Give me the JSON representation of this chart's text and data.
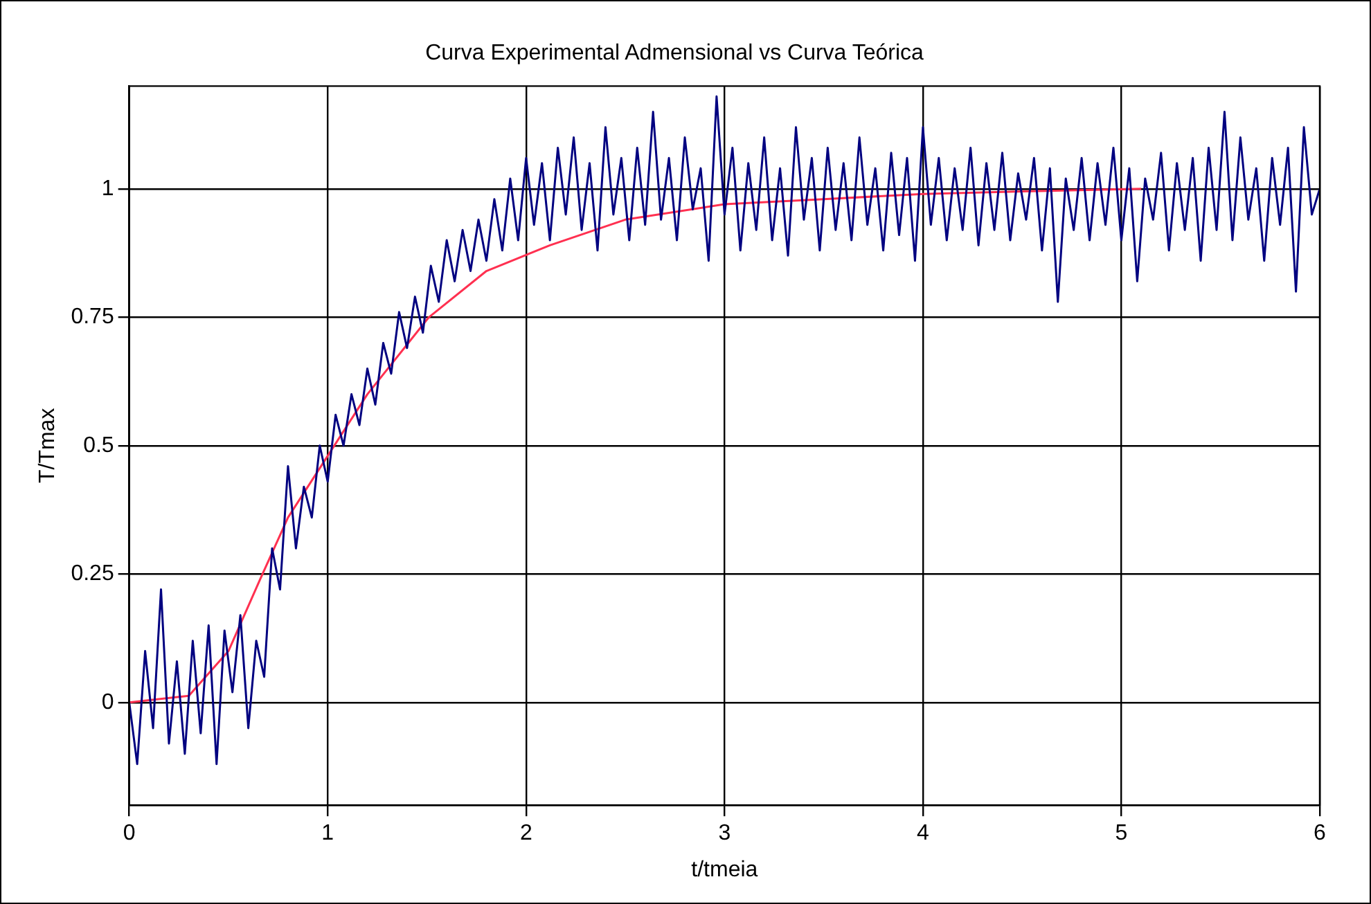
{
  "chart_data": {
    "type": "line",
    "title": "Curva Experimental Admensional vs Curva Teórica",
    "xlabel": "t/tmeia",
    "ylabel": "T/Tmax",
    "xlim": [
      0,
      6
    ],
    "xticks": [
      0,
      1,
      2,
      3,
      4,
      5,
      6
    ],
    "ylim": [
      -0.2,
      1.2
    ],
    "yticks": [
      0,
      0.25,
      0.5,
      0.75,
      1
    ],
    "grid": true,
    "legend": false,
    "marker": "none",
    "line_style": "solid",
    "series": [
      {
        "color": "#000080",
        "x": [
          0,
          0.04,
          0.08,
          0.12,
          0.16,
          0.2,
          0.24,
          0.28,
          0.32,
          0.36,
          0.4,
          0.44,
          0.48,
          0.52,
          0.56,
          0.6,
          0.64,
          0.68,
          0.72,
          0.76,
          0.8,
          0.84,
          0.88,
          0.92,
          0.96,
          1.0,
          1.04,
          1.08,
          1.12,
          1.16,
          1.2,
          1.24,
          1.28,
          1.32,
          1.36,
          1.4,
          1.44,
          1.48,
          1.52,
          1.56,
          1.6,
          1.64,
          1.68,
          1.72,
          1.76,
          1.8,
          1.84,
          1.88,
          1.92,
          1.96,
          2.0,
          2.04,
          2.08,
          2.12,
          2.16,
          2.2,
          2.24,
          2.28,
          2.32,
          2.36,
          2.4,
          2.44,
          2.48,
          2.52,
          2.56,
          2.6,
          2.64,
          2.68,
          2.72,
          2.76,
          2.8,
          2.84,
          2.88,
          2.92,
          2.96,
          3.0,
          3.04,
          3.08,
          3.12,
          3.16,
          3.2,
          3.24,
          3.28,
          3.32,
          3.36,
          3.4,
          3.44,
          3.48,
          3.52,
          3.56,
          3.6,
          3.64,
          3.68,
          3.72,
          3.76,
          3.8,
          3.84,
          3.88,
          3.92,
          3.96,
          4.0,
          4.04,
          4.08,
          4.12,
          4.16,
          4.2,
          4.24,
          4.28,
          4.32,
          4.36,
          4.4,
          4.44,
          4.48,
          4.52,
          4.56,
          4.6,
          4.64,
          4.68,
          4.72,
          4.76,
          4.8,
          4.84,
          4.88,
          4.92,
          4.96,
          5.0,
          5.04,
          5.08,
          5.12,
          5.16,
          5.2,
          5.24,
          5.28,
          5.32,
          5.36,
          5.4,
          5.44,
          5.48,
          5.52,
          5.56,
          5.6,
          5.64,
          5.68,
          5.72,
          5.76,
          5.8,
          5.84,
          5.88,
          5.92,
          5.96,
          6.0
        ],
        "values": [
          0,
          -0.12,
          0.1,
          -0.05,
          0.22,
          -0.08,
          0.08,
          -0.1,
          0.12,
          -0.06,
          0.15,
          -0.12,
          0.14,
          0.02,
          0.17,
          -0.05,
          0.12,
          0.05,
          0.3,
          0.22,
          0.46,
          0.3,
          0.42,
          0.36,
          0.5,
          0.43,
          0.56,
          0.5,
          0.6,
          0.54,
          0.65,
          0.58,
          0.7,
          0.64,
          0.76,
          0.69,
          0.79,
          0.72,
          0.85,
          0.78,
          0.9,
          0.82,
          0.92,
          0.84,
          0.94,
          0.86,
          0.98,
          0.88,
          1.02,
          0.9,
          1.06,
          0.93,
          1.05,
          0.9,
          1.08,
          0.95,
          1.1,
          0.92,
          1.05,
          0.88,
          1.12,
          0.95,
          1.06,
          0.9,
          1.08,
          0.93,
          1.15,
          0.94,
          1.06,
          0.9,
          1.1,
          0.96,
          1.04,
          0.86,
          1.18,
          0.95,
          1.08,
          0.88,
          1.05,
          0.92,
          1.1,
          0.9,
          1.04,
          0.87,
          1.12,
          0.94,
          1.06,
          0.88,
          1.08,
          0.92,
          1.05,
          0.9,
          1.1,
          0.93,
          1.04,
          0.88,
          1.07,
          0.91,
          1.06,
          0.86,
          1.12,
          0.93,
          1.06,
          0.9,
          1.04,
          0.92,
          1.08,
          0.89,
          1.05,
          0.92,
          1.07,
          0.9,
          1.03,
          0.94,
          1.06,
          0.88,
          1.04,
          0.78,
          1.02,
          0.92,
          1.06,
          0.9,
          1.05,
          0.93,
          1.08,
          0.9,
          1.04,
          0.82,
          1.02,
          0.94,
          1.07,
          0.88,
          1.05,
          0.92,
          1.06,
          0.86,
          1.08,
          0.92,
          1.15,
          0.9,
          1.1,
          0.94,
          1.04,
          0.86,
          1.06,
          0.93,
          1.08,
          0.8,
          1.12,
          0.95,
          1.0
        ]
      },
      {
        "color": "#ff3050",
        "x": [
          0,
          0.3,
          0.5,
          0.66,
          0.8,
          1.0,
          1.2,
          1.51,
          1.8,
          2.12,
          2.5,
          3.0,
          3.5,
          4.0,
          4.5,
          5.1
        ],
        "values": [
          0,
          0.013,
          0.1,
          0.24,
          0.36,
          0.48,
          0.6,
          0.75,
          0.84,
          0.89,
          0.94,
          0.97,
          0.98,
          0.99,
          0.995,
          1.0
        ]
      }
    ]
  }
}
